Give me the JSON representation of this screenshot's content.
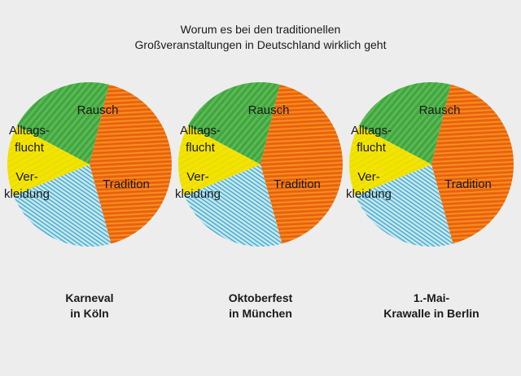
{
  "title_lines": [
    "Worum es bei den traditionellen",
    "Großveranstaltungen in Deutschland wirklich geht"
  ],
  "colors": {
    "rausch": "#4cb04a",
    "tradition": "#ef6a12",
    "alltagsflucht": "#f2e400",
    "verkleidung": "#7ec8de"
  },
  "chart_data": [
    {
      "type": "pie",
      "caption_lines": [
        "Karneval",
        "in Köln"
      ],
      "slices": [
        {
          "key": "rausch",
          "label_lines": [
            "Rausch"
          ],
          "value": 21
        },
        {
          "key": "tradition",
          "label_lines": [
            "Tradition"
          ],
          "value": 42
        },
        {
          "key": "verkleidung",
          "label_lines": [
            "Ver-",
            "kleidung"
          ],
          "value": 23
        },
        {
          "key": "alltagsflucht",
          "label_lines": [
            "Alltags-",
            "flucht"
          ],
          "value": 14
        }
      ]
    },
    {
      "type": "pie",
      "caption_lines": [
        "Oktoberfest",
        "in München"
      ],
      "slices": [
        {
          "key": "rausch",
          "label_lines": [
            "Rausch"
          ],
          "value": 21
        },
        {
          "key": "tradition",
          "label_lines": [
            "Tradition"
          ],
          "value": 42
        },
        {
          "key": "verkleidung",
          "label_lines": [
            "Ver-",
            "kleidung"
          ],
          "value": 23
        },
        {
          "key": "alltagsflucht",
          "label_lines": [
            "Alltags-",
            "flucht"
          ],
          "value": 14
        }
      ]
    },
    {
      "type": "pie",
      "caption_lines": [
        "1.-Mai-",
        "Krawalle in Berlin"
      ],
      "slices": [
        {
          "key": "rausch",
          "label_lines": [
            "Rausch"
          ],
          "value": 21
        },
        {
          "key": "tradition",
          "label_lines": [
            "Tradition"
          ],
          "value": 42
        },
        {
          "key": "verkleidung",
          "label_lines": [
            "Ver-",
            "kleidung"
          ],
          "value": 23
        },
        {
          "key": "alltagsflucht",
          "label_lines": [
            "Alltags-",
            "flucht"
          ],
          "value": 14
        }
      ]
    }
  ]
}
